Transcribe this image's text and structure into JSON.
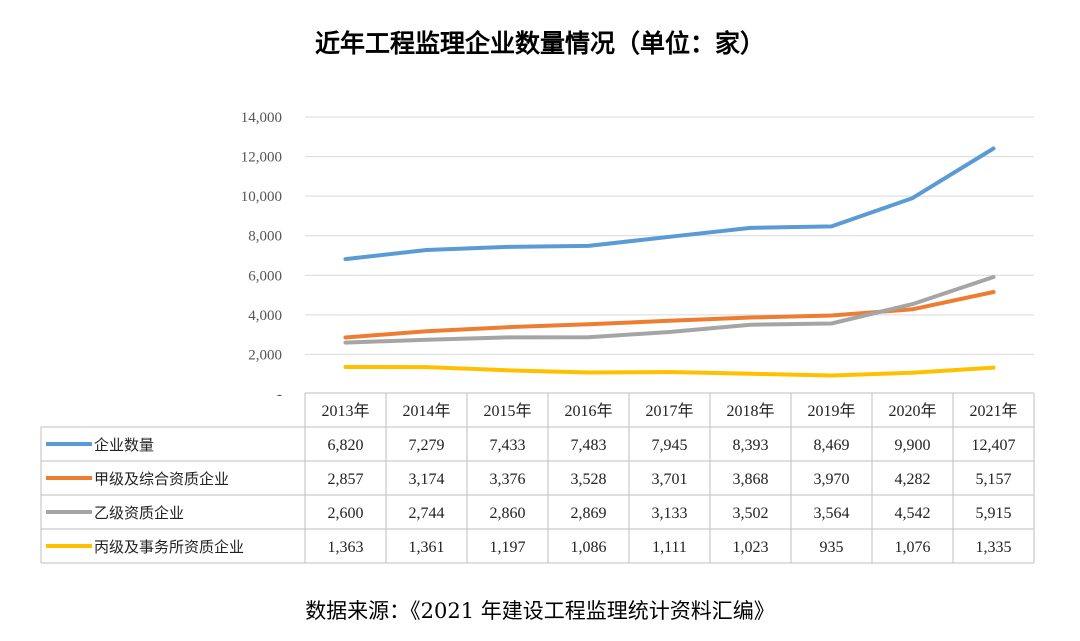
{
  "title": "近年工程监理企业数量情况（单位：家）",
  "source": "数据来源：《2021 年建设工程监理统计资料汇编》",
  "chart_data": {
    "type": "line",
    "title": "近年工程监理企业数量情况（单位：家）",
    "categories": [
      "2013年",
      "2014年",
      "2015年",
      "2016年",
      "2017年",
      "2018年",
      "2019年",
      "2020年",
      "2021年"
    ],
    "ylim": [
      0,
      14000
    ],
    "y_ticks": [
      {
        "value": 0,
        "label": "-"
      },
      {
        "value": 2000,
        "label": "2,000"
      },
      {
        "value": 4000,
        "label": "4,000"
      },
      {
        "value": 6000,
        "label": "6,000"
      },
      {
        "value": 8000,
        "label": "8,000"
      },
      {
        "value": 10000,
        "label": "10,000"
      },
      {
        "value": 12000,
        "label": "12,000"
      },
      {
        "value": 14000,
        "label": "14,000"
      }
    ],
    "grid": true,
    "legend": "data-table",
    "series": [
      {
        "name": "企业数量",
        "color": "#5B9BD5",
        "values": [
          6820,
          7279,
          7433,
          7483,
          7945,
          8393,
          8469,
          9900,
          12407
        ],
        "labels": [
          "6,820",
          "7,279",
          "7,433",
          "7,483",
          "7,945",
          "8,393",
          "8,469",
          "9,900",
          "12,407"
        ]
      },
      {
        "name": "甲级及综合资质企业",
        "color": "#ED7D31",
        "values": [
          2857,
          3174,
          3376,
          3528,
          3701,
          3868,
          3970,
          4282,
          5157
        ],
        "labels": [
          "2,857",
          "3,174",
          "3,376",
          "3,528",
          "3,701",
          "3,868",
          "3,970",
          "4,282",
          "5,157"
        ]
      },
      {
        "name": "乙级资质企业",
        "color": "#A5A5A5",
        "values": [
          2600,
          2744,
          2860,
          2869,
          3133,
          3502,
          3564,
          4542,
          5915
        ],
        "labels": [
          "2,600",
          "2,744",
          "2,860",
          "2,869",
          "3,133",
          "3,502",
          "3,564",
          "4,542",
          "5,915"
        ]
      },
      {
        "name": "丙级及事务所资质企业",
        "color": "#FFC000",
        "values": [
          1363,
          1361,
          1197,
          1086,
          1111,
          1023,
          935,
          1076,
          1335
        ],
        "labels": [
          "1,363",
          "1,361",
          "1,197",
          "1,086",
          "1,111",
          "1,023",
          "935",
          "1,076",
          "1,335"
        ]
      }
    ]
  }
}
